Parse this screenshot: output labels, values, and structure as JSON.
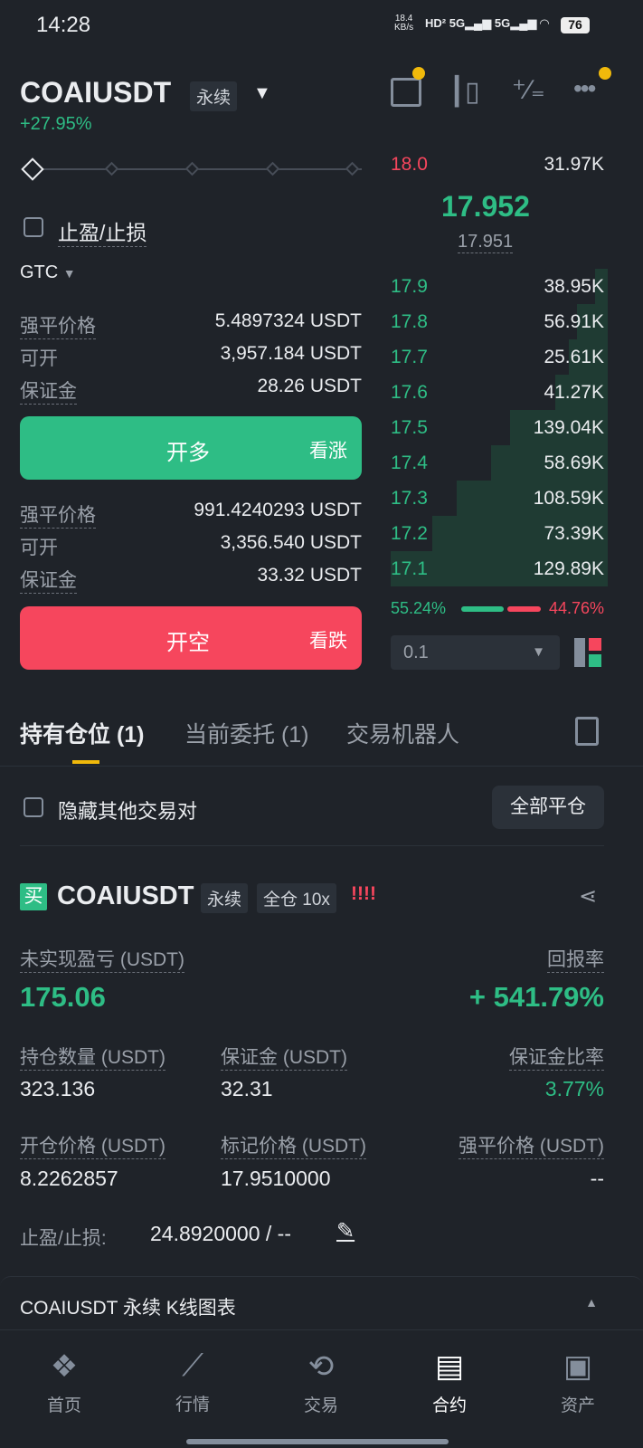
{
  "status_bar": {
    "time": "14:28",
    "net_speed": "18.4",
    "net_unit": "KB/s",
    "battery": "76"
  },
  "header": {
    "symbol": "COAIUSDT",
    "type_tag": "永续",
    "change": "+27.95%"
  },
  "order_form": {
    "tpsl_label": "止盈/止损",
    "tif": "GTC",
    "long": {
      "liq_label": "强平价格",
      "liq": "5.4897324 USDT",
      "avail_label": "可开",
      "avail": "3,957.184 USDT",
      "margin_label": "保证金",
      "margin": "28.26 USDT",
      "button": "开多",
      "button_sub": "看涨"
    },
    "short": {
      "liq_label": "强平价格",
      "liq": "991.4240293 USDT",
      "avail_label": "可开",
      "avail": "3,356.540 USDT",
      "margin_label": "保证金",
      "margin": "33.32 USDT",
      "button": "开空",
      "button_sub": "看跌"
    }
  },
  "order_book": {
    "top_ask": {
      "price": "18.0",
      "qty": "31.97K"
    },
    "last_price": "17.952",
    "mark_price": "17.951",
    "bids": [
      {
        "price": "17.9",
        "qty": "38.95K",
        "v": 38.95
      },
      {
        "price": "17.8",
        "qty": "56.91K",
        "v": 56.91
      },
      {
        "price": "17.7",
        "qty": "25.61K",
        "v": 25.61
      },
      {
        "price": "17.6",
        "qty": "41.27K",
        "v": 41.27
      },
      {
        "price": "17.5",
        "qty": "139.04K",
        "v": 139.04
      },
      {
        "price": "17.4",
        "qty": "58.69K",
        "v": 58.69
      },
      {
        "price": "17.3",
        "qty": "108.59K",
        "v": 108.59
      },
      {
        "price": "17.2",
        "qty": "73.39K",
        "v": 73.39
      },
      {
        "price": "17.1",
        "qty": "129.89K",
        "v": 129.89
      }
    ],
    "buy_ratio": "55.24%",
    "sell_ratio": "44.76%",
    "buy_pct": 55.24,
    "precision": "0.1"
  },
  "tabs": [
    {
      "label": "持有仓位 (1)",
      "active": true
    },
    {
      "label": "当前委托 (1)"
    },
    {
      "label": "交易机器人"
    }
  ],
  "positions": {
    "hide_others": "隐藏其他交易对",
    "close_all": "全部平仓",
    "item": {
      "side": "买",
      "symbol": "COAIUSDT",
      "type": "永续",
      "mode": "全仓 10x",
      "warn": "!!!!",
      "pnl_label": "未实现盈亏 (USDT)",
      "pnl": "175.06",
      "roe_label": "回报率",
      "roe": "+ 541.79%",
      "size_label": "持仓数量 (USDT)",
      "size": "323.136",
      "margin_label": "保证金 (USDT)",
      "margin": "32.31",
      "ratio_label": "保证金比率",
      "ratio": "3.77%",
      "entry_label": "开仓价格 (USDT)",
      "entry": "8.2262857",
      "mark_label": "标记价格 (USDT)",
      "mark": "17.9510000",
      "liq_label": "强平价格 (USDT)",
      "liq": "--",
      "tpsl_label": "止盈/止损:",
      "tpsl": "24.8920000 / --"
    }
  },
  "chart_bar": {
    "label": "COAIUSDT 永续 K线图表"
  },
  "nav": [
    {
      "label": "首页"
    },
    {
      "label": "行情"
    },
    {
      "label": "交易"
    },
    {
      "label": "合约",
      "active": true
    },
    {
      "label": "资产"
    }
  ],
  "colors": {
    "bg": "#1f2329",
    "green": "#2ebd85",
    "red": "#f6465d",
    "accent": "#f0b90b"
  }
}
